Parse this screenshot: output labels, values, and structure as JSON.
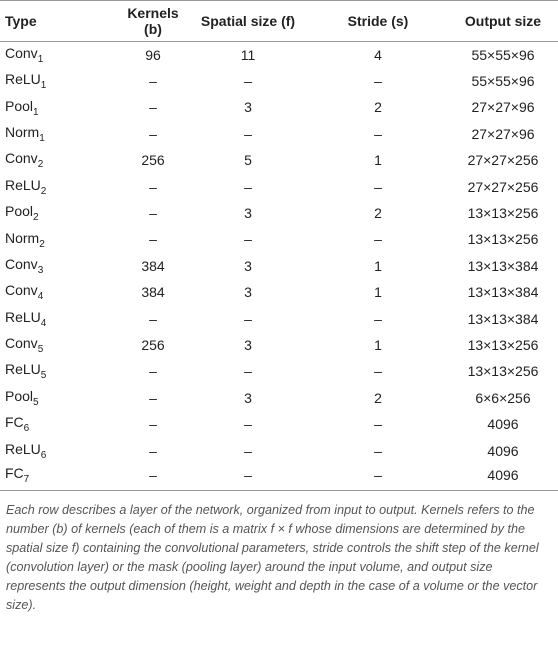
{
  "table": {
    "header": [
      "Type",
      "Kernels (b)",
      "Spatial size (f)",
      "Stride (s)",
      "Output size"
    ],
    "rows": [
      {
        "type": "Conv",
        "sub": "1",
        "kernels": "96",
        "spatial": "11",
        "stride": "4",
        "output": "55×55×96"
      },
      {
        "type": "ReLU",
        "sub": "1",
        "kernels": "–",
        "spatial": "–",
        "stride": "–",
        "output": "55×55×96"
      },
      {
        "type": "Pool",
        "sub": "1",
        "kernels": "–",
        "spatial": "3",
        "stride": "2",
        "output": "27×27×96"
      },
      {
        "type": "Norm",
        "sub": "1",
        "kernels": "–",
        "spatial": "–",
        "stride": "–",
        "output": "27×27×96"
      },
      {
        "type": "Conv",
        "sub": "2",
        "kernels": "256",
        "spatial": "5",
        "stride": "1",
        "output": "27×27×256"
      },
      {
        "type": "ReLU",
        "sub": "2",
        "kernels": "–",
        "spatial": "–",
        "stride": "–",
        "output": "27×27×256"
      },
      {
        "type": "Pool",
        "sub": "2",
        "kernels": "–",
        "spatial": "3",
        "stride": "2",
        "output": "13×13×256"
      },
      {
        "type": "Norm",
        "sub": "2",
        "kernels": "–",
        "spatial": "–",
        "stride": "–",
        "output": "13×13×256"
      },
      {
        "type": "Conv",
        "sub": "3",
        "kernels": "384",
        "spatial": "3",
        "stride": "1",
        "output": "13×13×384"
      },
      {
        "type": "Conv",
        "sub": "4",
        "kernels": "384",
        "spatial": "3",
        "stride": "1",
        "output": "13×13×384"
      },
      {
        "type": "ReLU",
        "sub": "4",
        "kernels": "–",
        "spatial": "–",
        "stride": "–",
        "output": "13×13×384"
      },
      {
        "type": "Conv",
        "sub": "5",
        "kernels": "256",
        "spatial": "3",
        "stride": "1",
        "output": "13×13×256"
      },
      {
        "type": "ReLU",
        "sub": "5",
        "kernels": "–",
        "spatial": "–",
        "stride": "–",
        "output": "13×13×256"
      },
      {
        "type": "Pool",
        "sub": "5",
        "kernels": "–",
        "spatial": "3",
        "stride": "2",
        "output": "6×6×256"
      },
      {
        "type": "FC",
        "sub": "6",
        "kernels": "–",
        "spatial": "–",
        "stride": "–",
        "output": "4096"
      },
      {
        "type": "ReLU",
        "sub": "6",
        "kernels": "–",
        "spatial": "–",
        "stride": "–",
        "output": "4096"
      },
      {
        "type": "FC",
        "sub": "7",
        "kernels": "–",
        "spatial": "–",
        "stride": "–",
        "output": "4096"
      }
    ],
    "caption": "Each row describes a layer of the network, organized from input to output. Kernels refers to the number (b) of kernels (each of them is a matrix f × f whose dimensions are determined by the spatial size f) containing the convolutional parameters, stride controls the shift step of the kernel (convolution layer) or the mask (pooling layer) around the input volume, and output size represents the output dimension (height, weight and depth in the case of a volume or the vector size)."
  }
}
